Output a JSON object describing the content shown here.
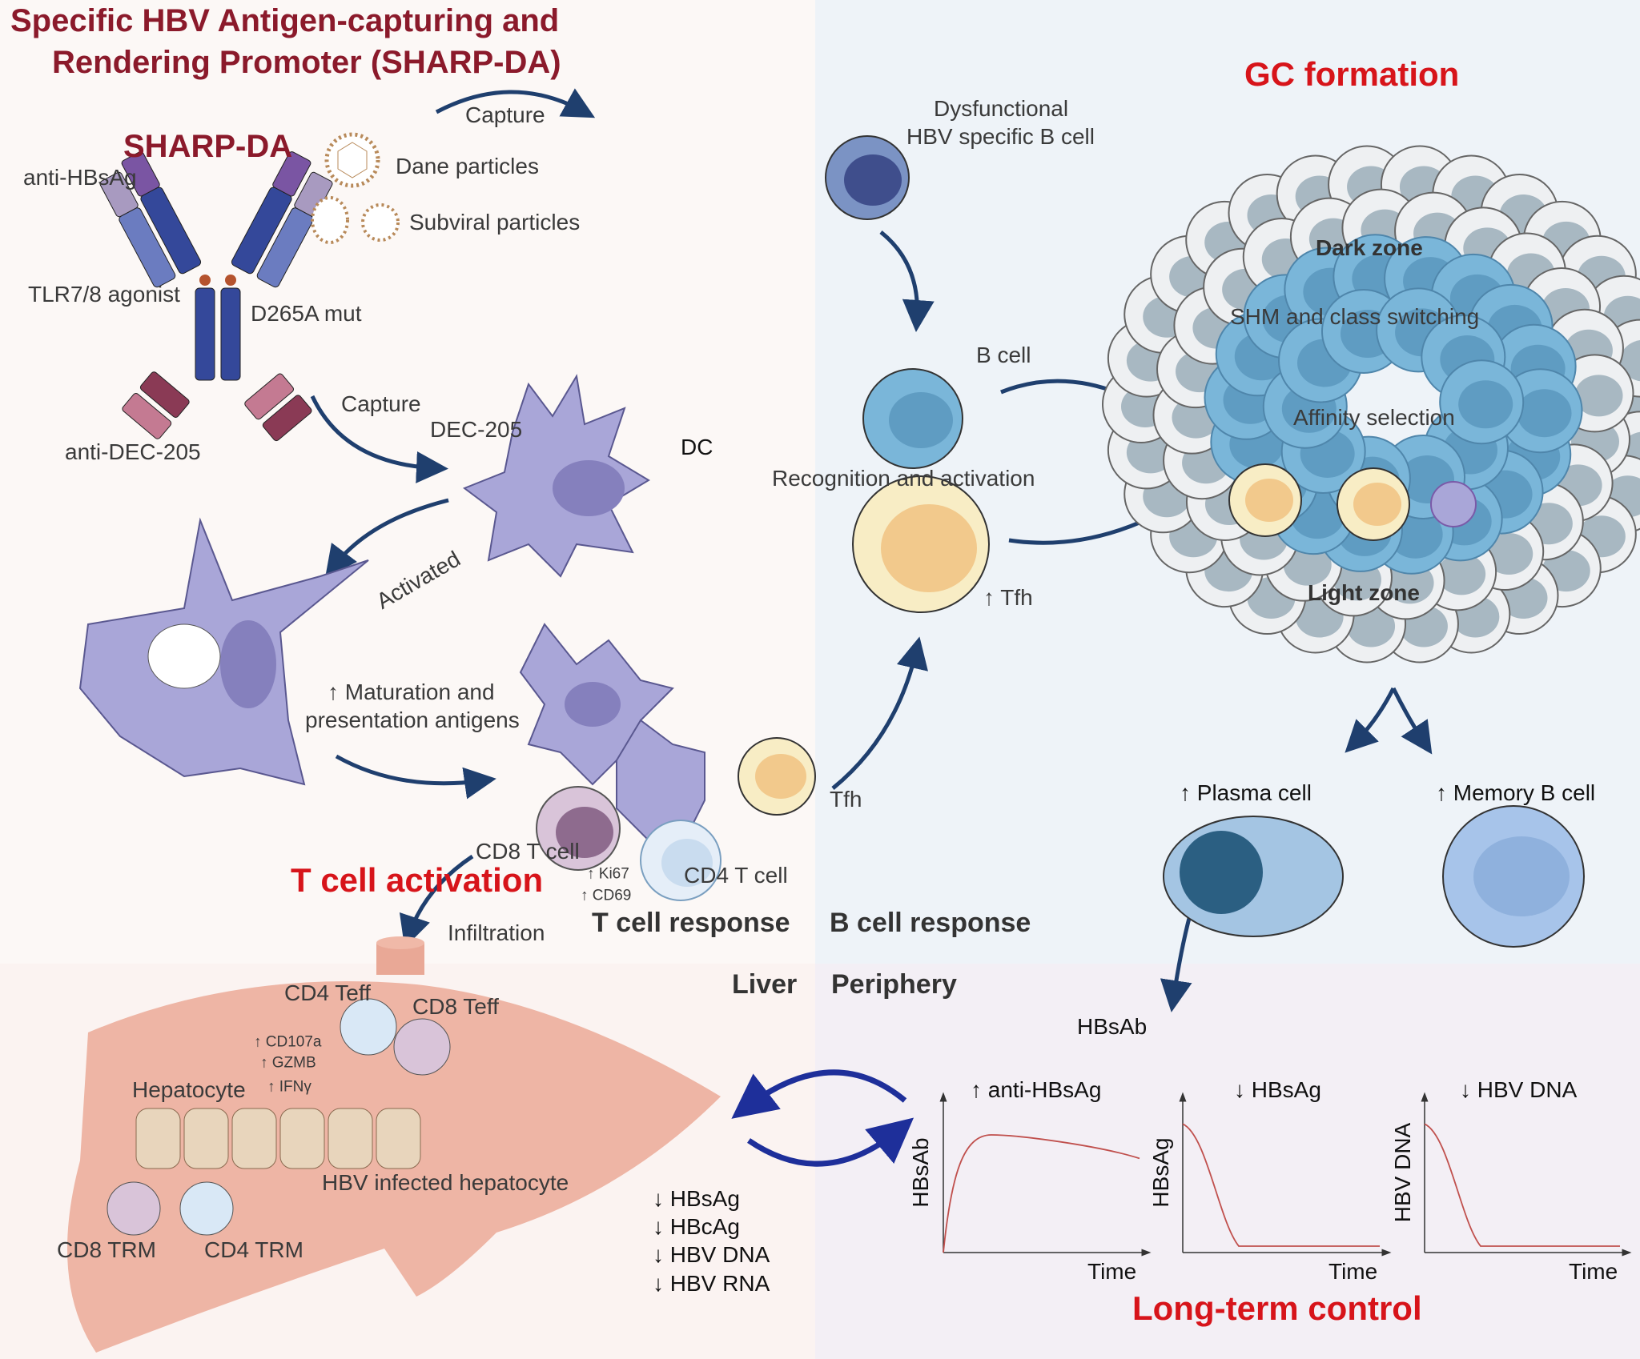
{
  "title": {
    "line1": "Specific HBV Antigen-capturing and",
    "line2": "Rendering Promoter (SHARP-DA)"
  },
  "colors": {
    "title": "#8b1a2b",
    "section_headers": "#d7141a",
    "antibody_heavy": "#2e3f8f",
    "dc": "#a9a6d8",
    "b_cell": "#7ab6d9",
    "tfh": "#f5d58f",
    "liver": "#e9a896",
    "curves": "#c0504d"
  },
  "sharp_da": {
    "name": "SHARP-DA",
    "anti_hbsag": "anti-HBsAg",
    "tlr": "TLR7/8 agonist",
    "mut": "D265A mut",
    "anti_dec": "anti-DEC-205",
    "dane": "Dane particles",
    "subviral": "Subviral particles"
  },
  "dc_panel": {
    "capture_top": "Capture",
    "capture_mid": "Capture",
    "dec205": "DEC-205",
    "dc": "DC",
    "activated": "Activated",
    "maturation1": "↑ Maturation and",
    "maturation2": "presentation antigens",
    "tfh": "Tfh",
    "cd8": "CD8 T cell",
    "cd4": "CD4 T cell",
    "ki67": "↑ Ki67",
    "cd69": "↑ CD69",
    "t_activation": "T cell activation",
    "infiltration": "Infiltration",
    "t_response": "T cell response"
  },
  "b_panel": {
    "dysfunctional1": "Dysfunctional",
    "dysfunctional2": "HBV specific B cell",
    "b_cell": "B cell",
    "recognition": "Recognition and activation",
    "tfh_up": "↑ Tfh",
    "b_response": "B cell response"
  },
  "gc": {
    "title": "GC formation",
    "dark_zone": "Dark zone",
    "shm": "SHM and class switching",
    "affinity": "Affinity selection",
    "light_zone": "Light zone",
    "plasma": "↑ Plasma cell",
    "memory": "↑ Memory B cell",
    "hbsab": "HBsAb"
  },
  "liver": {
    "label": "Liver",
    "cd4_teff": "CD4 Teff",
    "cd8_teff": "CD8 Teff",
    "cd107a": "↑ CD107a",
    "gzmb": "↑ GZMB",
    "ifng": "↑ IFNγ",
    "hepatocyte": "Hepatocyte",
    "infected": "HBV infected hepatocyte",
    "cd8_trm": "CD8 TRM",
    "cd4_trm": "CD4 TRM",
    "markers": [
      "↓ HBsAg",
      "↓ HBcAg",
      "↓ HBV DNA",
      "↓ HBV RNA"
    ]
  },
  "periphery": {
    "label": "Periphery",
    "long_term": "Long-term control"
  },
  "chart_data": [
    {
      "type": "line",
      "title": "↑ anti-HBsAg",
      "xlabel": "Time",
      "ylabel": "HBsAb",
      "trend": "rapid rise then slow decline",
      "grid": false
    },
    {
      "type": "line",
      "title": "↓ HBsAg",
      "xlabel": "Time",
      "ylabel": "HBsAg",
      "trend": "sharp decline to baseline",
      "grid": false
    },
    {
      "type": "line",
      "title": "↓ HBV DNA",
      "xlabel": "Time",
      "ylabel": "HBV DNA",
      "trend": "sharp decline to baseline",
      "grid": false
    }
  ]
}
